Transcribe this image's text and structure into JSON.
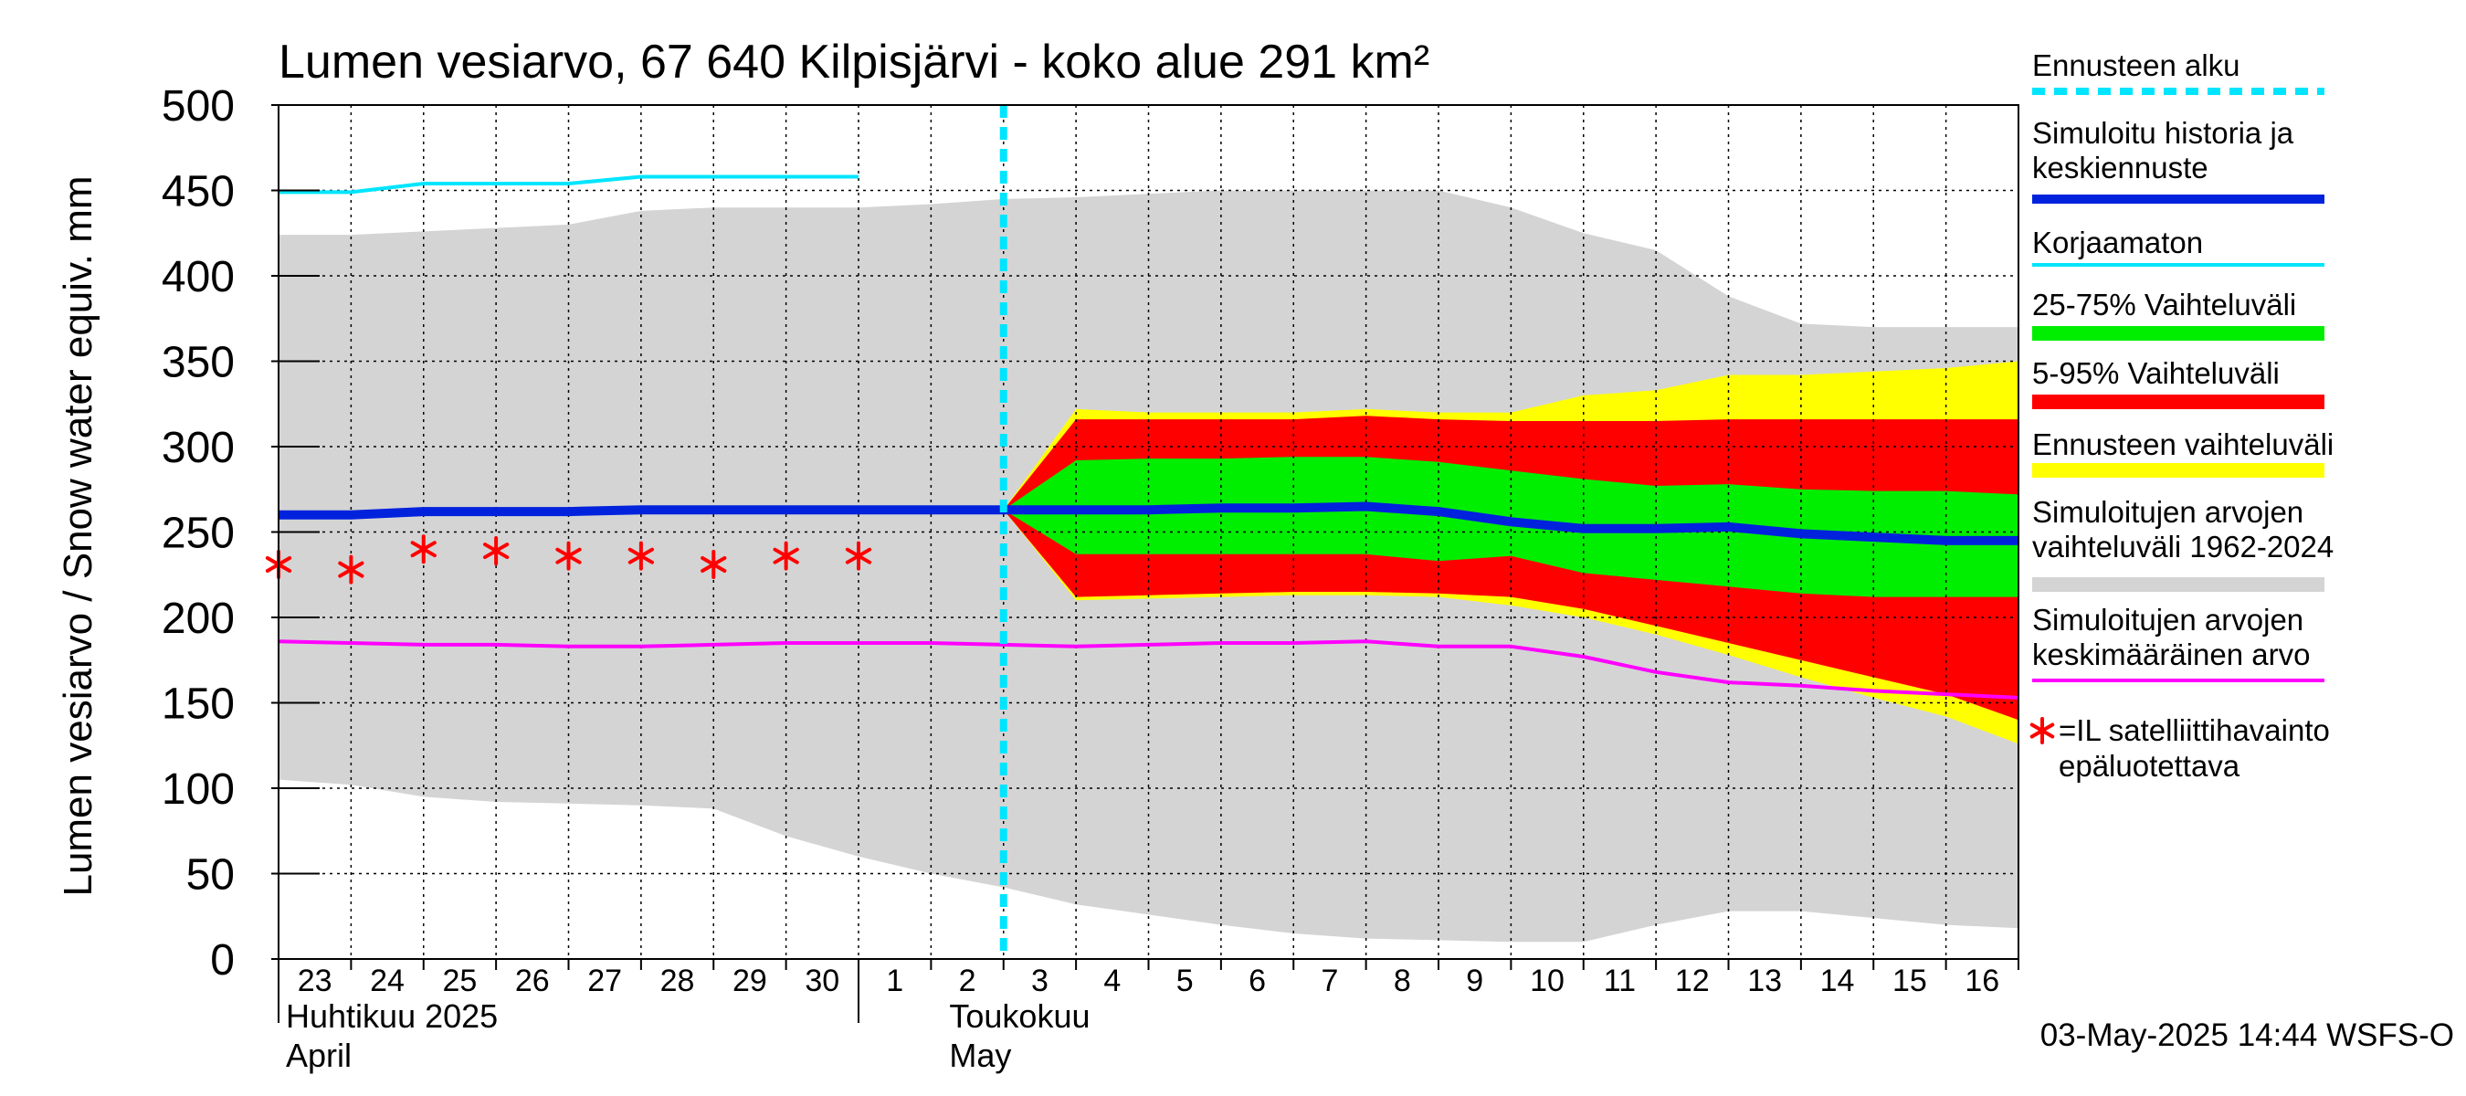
{
  "chart_data": {
    "type": "area",
    "title": "Lumen vesiarvo, 67 640 Kilpisjärvi - koko alue 291 km²",
    "ylabel": "Lumen vesiarvo / Snow water equiv.    mm",
    "ylim": [
      0,
      500
    ],
    "yticks": [
      0,
      50,
      100,
      150,
      200,
      250,
      300,
      350,
      400,
      450,
      500
    ],
    "x_day_labels": [
      "23",
      "24",
      "25",
      "26",
      "27",
      "28",
      "29",
      "30",
      "1",
      "2",
      "3",
      "4",
      "5",
      "6",
      "7",
      "8",
      "9",
      "10",
      "11",
      "12",
      "13",
      "14",
      "15",
      "16"
    ],
    "x_dates": [
      "2025-04-23",
      "2025-04-24",
      "2025-04-25",
      "2025-04-26",
      "2025-04-27",
      "2025-04-28",
      "2025-04-29",
      "2025-04-30",
      "2025-05-01",
      "2025-05-02",
      "2025-05-03",
      "2025-05-04",
      "2025-05-05",
      "2025-05-06",
      "2025-05-07",
      "2025-05-08",
      "2025-05-09",
      "2025-05-10",
      "2025-05-11",
      "2025-05-12",
      "2025-05-13",
      "2025-05-14",
      "2025-05-15",
      "2025-05-16",
      "2025-05-17"
    ],
    "month_labels": [
      {
        "line1": "Huhtikuu  2025",
        "line2": "April"
      },
      {
        "line1": "Toukokuu",
        "line2": "May"
      }
    ],
    "grid": true,
    "legend_position": "right",
    "forecast_start": "2025-05-03",
    "footer": "03-May-2025 14:44 WSFS-O",
    "series": [
      {
        "name": "Simuloitujen arvojen vaihteluväli 1962-2024",
        "kind": "band",
        "color": "#d4d4d4",
        "x": [
          "2025-04-23",
          "2025-04-24",
          "2025-04-25",
          "2025-04-26",
          "2025-04-27",
          "2025-04-28",
          "2025-04-29",
          "2025-04-30",
          "2025-05-01",
          "2025-05-02",
          "2025-05-03",
          "2025-05-04",
          "2025-05-05",
          "2025-05-06",
          "2025-05-07",
          "2025-05-08",
          "2025-05-09",
          "2025-05-10",
          "2025-05-11",
          "2025-05-12",
          "2025-05-13",
          "2025-05-14",
          "2025-05-15",
          "2025-05-16",
          "2025-05-17"
        ],
        "upper": [
          424,
          424,
          426,
          428,
          430,
          438,
          440,
          440,
          440,
          442,
          445,
          446,
          448,
          450,
          450,
          450,
          450,
          440,
          425,
          415,
          388,
          372,
          370,
          370,
          370
        ],
        "lower": [
          105,
          102,
          95,
          92,
          91,
          90,
          88,
          72,
          60,
          50,
          42,
          32,
          26,
          20,
          15,
          12,
          11,
          10,
          10,
          20,
          28,
          28,
          24,
          20,
          18
        ]
      },
      {
        "name": "Ennusteen vaihteluväli",
        "kind": "band",
        "color": "#ffff00",
        "x": [
          "2025-05-03",
          "2025-05-04",
          "2025-05-05",
          "2025-05-06",
          "2025-05-07",
          "2025-05-08",
          "2025-05-09",
          "2025-05-10",
          "2025-05-11",
          "2025-05-12",
          "2025-05-13",
          "2025-05-14",
          "2025-05-15",
          "2025-05-16",
          "2025-05-17"
        ],
        "upper": [
          263,
          322,
          320,
          320,
          320,
          322,
          320,
          320,
          330,
          333,
          342,
          342,
          344,
          346,
          350
        ],
        "lower": [
          263,
          210,
          211,
          212,
          213,
          213,
          212,
          207,
          200,
          190,
          178,
          165,
          153,
          142,
          126
        ]
      },
      {
        "name": "5-95% Vaihteluväli",
        "kind": "band",
        "color": "#ff0000",
        "x": [
          "2025-05-03",
          "2025-05-04",
          "2025-05-05",
          "2025-05-06",
          "2025-05-07",
          "2025-05-08",
          "2025-05-09",
          "2025-05-10",
          "2025-05-11",
          "2025-05-12",
          "2025-05-13",
          "2025-05-14",
          "2025-05-15",
          "2025-05-16",
          "2025-05-17"
        ],
        "upper": [
          263,
          316,
          316,
          316,
          316,
          318,
          316,
          315,
          315,
          315,
          316,
          316,
          316,
          316,
          316
        ],
        "lower": [
          263,
          212,
          213,
          214,
          215,
          215,
          214,
          212,
          205,
          195,
          185,
          175,
          165,
          155,
          140
        ]
      },
      {
        "name": "25-75% Vaihteluväli",
        "kind": "band",
        "color": "#00ee00",
        "x": [
          "2025-05-03",
          "2025-05-04",
          "2025-05-05",
          "2025-05-06",
          "2025-05-07",
          "2025-05-08",
          "2025-05-09",
          "2025-05-10",
          "2025-05-11",
          "2025-05-12",
          "2025-05-13",
          "2025-05-14",
          "2025-05-15",
          "2025-05-16",
          "2025-05-17"
        ],
        "upper": [
          263,
          292,
          293,
          293,
          294,
          294,
          291,
          286,
          281,
          277,
          278,
          275,
          274,
          274,
          272
        ],
        "lower": [
          263,
          237,
          237,
          237,
          237,
          237,
          233,
          236,
          226,
          222,
          218,
          214,
          212,
          212,
          212
        ]
      },
      {
        "name": "Simuloitujen arvojen keskimääräinen arvo",
        "kind": "line",
        "color": "#ff00ff",
        "x": [
          "2025-04-23",
          "2025-04-24",
          "2025-04-25",
          "2025-04-26",
          "2025-04-27",
          "2025-04-28",
          "2025-04-29",
          "2025-04-30",
          "2025-05-01",
          "2025-05-02",
          "2025-05-03",
          "2025-05-04",
          "2025-05-05",
          "2025-05-06",
          "2025-05-07",
          "2025-05-08",
          "2025-05-09",
          "2025-05-10",
          "2025-05-11",
          "2025-05-12",
          "2025-05-13",
          "2025-05-14",
          "2025-05-15",
          "2025-05-16",
          "2025-05-17"
        ],
        "y": [
          186,
          185,
          184,
          184,
          183,
          183,
          184,
          185,
          185,
          185,
          184,
          183,
          184,
          185,
          185,
          186,
          183,
          183,
          177,
          168,
          162,
          160,
          157,
          155,
          153
        ]
      },
      {
        "name": "Korjaamaton",
        "kind": "line",
        "color": "#00e5ff",
        "x": [
          "2025-04-23",
          "2025-04-24",
          "2025-04-25",
          "2025-04-26",
          "2025-04-27",
          "2025-04-28",
          "2025-04-29",
          "2025-04-30",
          "2025-05-01"
        ],
        "y": [
          449,
          449,
          454,
          454,
          454,
          458,
          458,
          458,
          458
        ]
      },
      {
        "name": "Simuloitu historia ja keskiennuste",
        "kind": "line",
        "color": "#0022dd",
        "x": [
          "2025-04-23",
          "2025-04-24",
          "2025-04-25",
          "2025-04-26",
          "2025-04-27",
          "2025-04-28",
          "2025-04-29",
          "2025-04-30",
          "2025-05-01",
          "2025-05-02",
          "2025-05-03",
          "2025-05-04",
          "2025-05-05",
          "2025-05-06",
          "2025-05-07",
          "2025-05-08",
          "2025-05-09",
          "2025-05-10",
          "2025-05-11",
          "2025-05-12",
          "2025-05-13",
          "2025-05-14",
          "2025-05-15",
          "2025-05-16",
          "2025-05-17"
        ],
        "y": [
          260,
          260,
          262,
          262,
          262,
          263,
          263,
          263,
          263,
          263,
          263,
          263,
          263,
          264,
          264,
          265,
          262,
          256,
          252,
          252,
          253,
          249,
          247,
          245,
          245
        ]
      },
      {
        "name": "=IL satelliittihavainto epäluotettava",
        "kind": "markers",
        "color": "#ff0000",
        "x": [
          "2025-04-23",
          "2025-04-24",
          "2025-04-25",
          "2025-04-26",
          "2025-04-27",
          "2025-04-28",
          "2025-04-29",
          "2025-04-30",
          "2025-05-01"
        ],
        "y": [
          231,
          228,
          240,
          239,
          236,
          236,
          231,
          236,
          236
        ]
      }
    ],
    "legend": [
      {
        "label": "Ennusteen alku",
        "color": "#00e5ff",
        "style": "dashed"
      },
      {
        "label": "Simuloitu historia ja keskiennuste",
        "color": "#0022dd",
        "style": "thick"
      },
      {
        "label": "Korjaamaton",
        "color": "#00e5ff",
        "style": "line"
      },
      {
        "label": "25-75% Vaihteluväli",
        "color": "#00ee00",
        "style": "band"
      },
      {
        "label": "5-95% Vaihteluväli",
        "color": "#ff0000",
        "style": "band"
      },
      {
        "label": "Ennusteen vaihteluväli",
        "color": "#ffff00",
        "style": "band"
      },
      {
        "label": "Simuloitujen arvojen vaihteluväli 1962-2024",
        "color": "#d4d4d4",
        "style": "band"
      },
      {
        "label": "Simuloitujen arvojen keskimääräinen arvo",
        "color": "#ff00ff",
        "style": "line"
      },
      {
        "label": "=IL satelliittihavainto epäluotettava",
        "color": "#ff0000",
        "style": "marker"
      }
    ]
  }
}
